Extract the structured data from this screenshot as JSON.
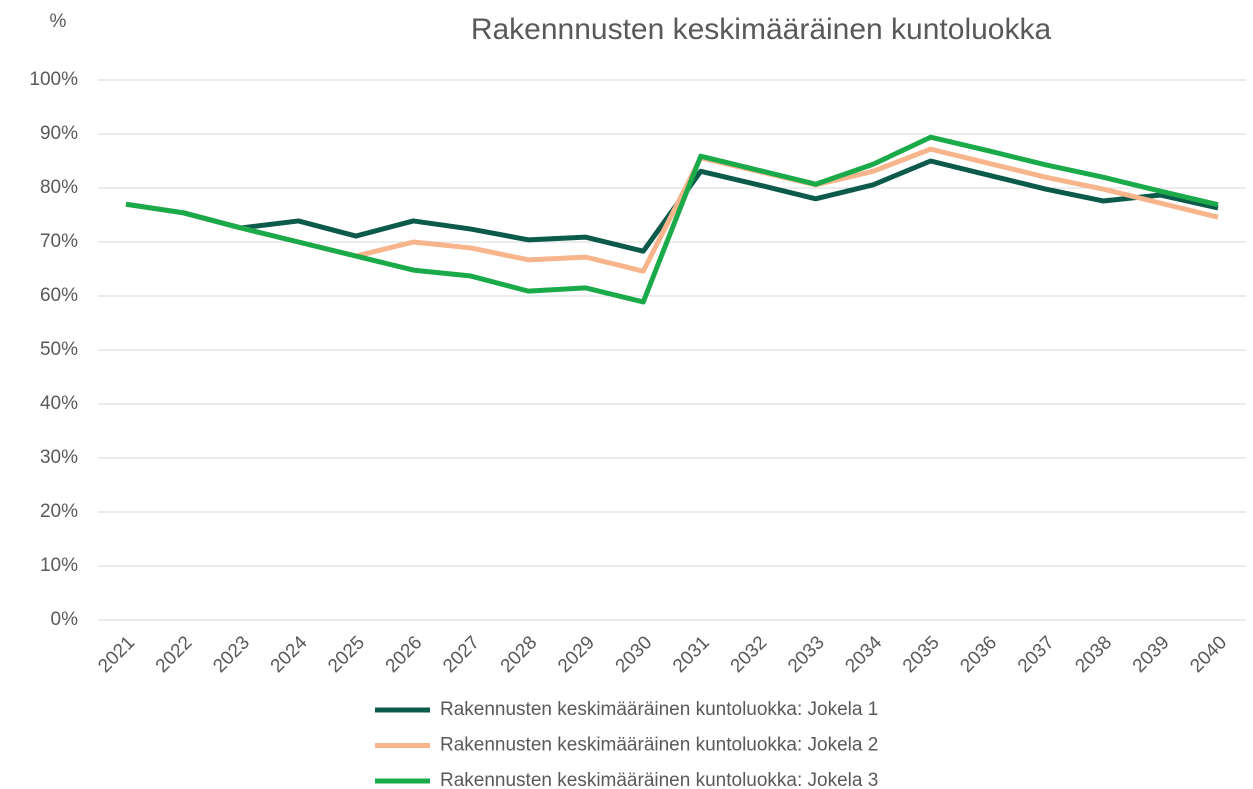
{
  "chart_data": {
    "type": "line",
    "title": "Rakennnusten keskimääräinen kuntoluokka",
    "y_label": "%",
    "categories": [
      "2021",
      "2022",
      "2023",
      "2024",
      "2025",
      "2026",
      "2027",
      "2028",
      "2029",
      "2030",
      "2031",
      "2032",
      "2033",
      "2034",
      "2035",
      "2036",
      "2037",
      "2038",
      "2039",
      "2040"
    ],
    "series": [
      {
        "name": "Rakennusten keskimääräinen kuntoluokka: Jokela 1",
        "color": "#0b5a4a",
        "values": [
          77.0,
          75.4,
          72.6,
          73.9,
          71.1,
          73.9,
          72.4,
          70.4,
          70.9,
          68.3,
          83.1,
          80.6,
          78.0,
          80.6,
          85.0,
          82.4,
          79.8,
          77.6,
          78.7,
          76.3
        ]
      },
      {
        "name": "Rakennusten keskimääräinen kuntoluokka: Jokela 2",
        "color": "#f8b58c",
        "values": [
          77.0,
          75.4,
          72.6,
          70.0,
          67.4,
          70.0,
          68.9,
          66.7,
          67.2,
          64.6,
          85.6,
          83.1,
          80.6,
          83.1,
          87.2,
          84.6,
          82.0,
          79.8,
          77.2,
          74.6
        ]
      },
      {
        "name": "Rakennusten keskimääräinen kuntoluokka: Jokela 3",
        "color": "#1aaa4a",
        "values": [
          77.0,
          75.4,
          72.6,
          70.0,
          67.4,
          64.8,
          63.7,
          60.9,
          61.5,
          58.9,
          85.9,
          83.3,
          80.7,
          84.4,
          89.4,
          86.9,
          84.3,
          82.0,
          79.4,
          76.9
        ]
      }
    ],
    "ylim": [
      0,
      100
    ],
    "yticks": [
      {
        "value": 0,
        "label": "0%"
      },
      {
        "value": 10,
        "label": "10%"
      },
      {
        "value": 20,
        "label": "20%"
      },
      {
        "value": 30,
        "label": "30%"
      },
      {
        "value": 40,
        "label": "40%"
      },
      {
        "value": 50,
        "label": "50%"
      },
      {
        "value": 60,
        "label": "60%"
      },
      {
        "value": 70,
        "label": "70%"
      },
      {
        "value": 80,
        "label": "80%"
      },
      {
        "value": 90,
        "label": "90%"
      },
      {
        "value": 100,
        "label": "100%"
      }
    ],
    "grid": true,
    "legend": "bottom"
  }
}
